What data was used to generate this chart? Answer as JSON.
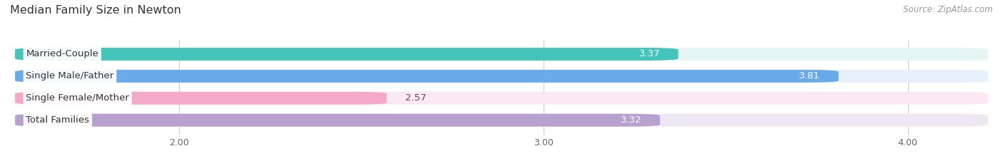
{
  "title": "Median Family Size in Newton",
  "source": "Source: ZipAtlas.com",
  "categories": [
    "Married-Couple",
    "Single Male/Father",
    "Single Female/Mother",
    "Total Families"
  ],
  "values": [
    3.37,
    3.81,
    2.57,
    3.32
  ],
  "bar_colors": [
    "#45c4bc",
    "#6aaae8",
    "#f5a8c8",
    "#b8a0d0"
  ],
  "bar_bg_colors": [
    "#e5f5f4",
    "#e5f0fb",
    "#fce8f2",
    "#eee8f5"
  ],
  "xlim": [
    1.55,
    4.22
  ],
  "xmin": 1.55,
  "xticks": [
    2.0,
    3.0,
    4.0
  ],
  "bar_height": 0.58,
  "bar_gap": 0.18,
  "label_fontsize": 9.5,
  "value_fontsize": 9.5,
  "title_fontsize": 11.5
}
